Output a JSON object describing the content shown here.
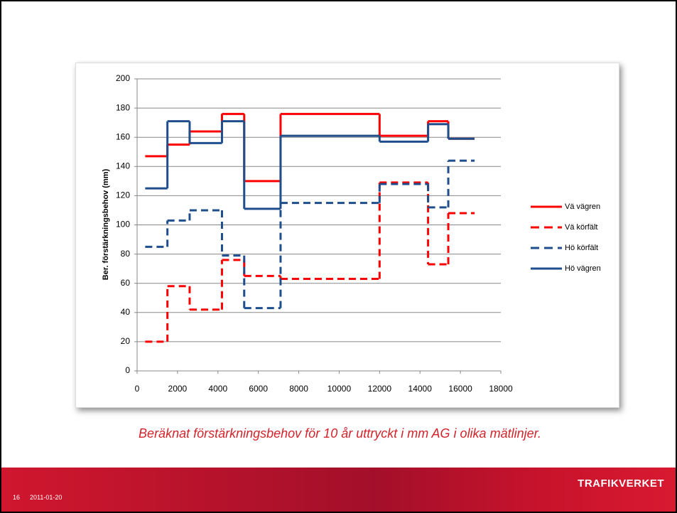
{
  "chart_data": {
    "type": "step",
    "y_label": "Ber. förstärkningsbehov (mm)",
    "x": [
      400,
      1500,
      2600,
      4200,
      5300,
      7100,
      12000,
      14400,
      15400,
      16700
    ],
    "series": [
      {
        "name": "Vä vägren",
        "color": "#ff0000",
        "dashed": false,
        "values": [
          147,
          155,
          164,
          176,
          130,
          176,
          161,
          171,
          159,
          159
        ]
      },
      {
        "name": "Vä körfält",
        "color": "#ff0000",
        "dashed": true,
        "values": [
          20,
          58,
          42,
          76,
          65,
          63,
          129,
          73,
          108,
          108
        ]
      },
      {
        "name": "Hö körfält",
        "color": "#1f4e8c",
        "dashed": true,
        "values": [
          85,
          103,
          110,
          79,
          43,
          115,
          128,
          112,
          144,
          144
        ]
      },
      {
        "name": "Hö vägren",
        "color": "#1f4e8c",
        "dashed": false,
        "values": [
          125,
          171,
          156,
          171,
          111,
          161,
          157,
          169,
          159,
          159
        ]
      }
    ],
    "xlim": [
      0,
      18000
    ],
    "xticks": [
      0,
      2000,
      4000,
      6000,
      8000,
      10000,
      12000,
      14000,
      16000,
      18000
    ],
    "ylim": [
      0,
      200
    ],
    "yticks": [
      0,
      20,
      40,
      60,
      80,
      100,
      120,
      140,
      160,
      180,
      200
    ],
    "grid": true,
    "legend": "right"
  },
  "caption": "Beräknat förstärkningsbehov för 10 år uttryckt i mm AG i olika mätlinjer.",
  "footer": {
    "page": "16",
    "date": "2011-01-20",
    "logo": "TRAFIKVERKET"
  }
}
